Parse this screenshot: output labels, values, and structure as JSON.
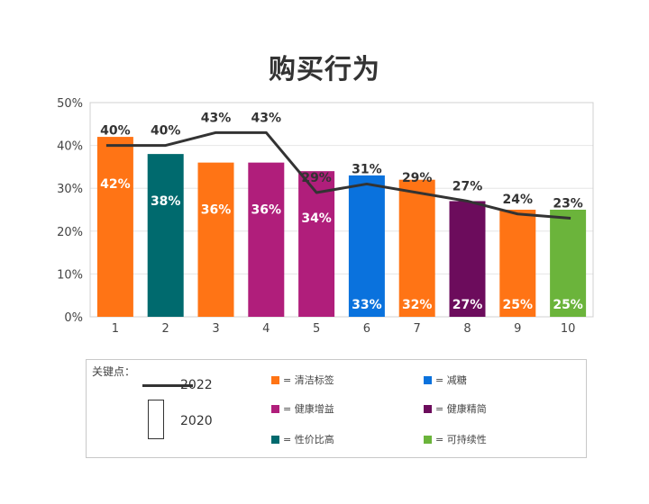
{
  "chart_data": {
    "type": "bar",
    "title": "购买行为",
    "categories": [
      "1",
      "2",
      "3",
      "4",
      "5",
      "6",
      "7",
      "8",
      "9",
      "10"
    ],
    "series": [
      {
        "name": "2020",
        "values": [
          42,
          38,
          36,
          36,
          34,
          33,
          32,
          27,
          25,
          25
        ],
        "labels": [
          "42%",
          "38%",
          "36%",
          "36%",
          "34%",
          "33%",
          "32%",
          "27%",
          "25%",
          "25%"
        ],
        "colors": [
          "#FF7415",
          "#006A6E",
          "#FF7415",
          "#B01E7B",
          "#B01E7B",
          "#0A72DD",
          "#FF7415",
          "#6C0C5C",
          "#FF7415",
          "#6BB43B"
        ]
      },
      {
        "name": "2022",
        "type": "line",
        "values": [
          40,
          40,
          43,
          43,
          29,
          31,
          29,
          27,
          24,
          23
        ],
        "labels": [
          "40%",
          "40%",
          "43%",
          "43%",
          "29%",
          "31%",
          "29%",
          "27%",
          "24%",
          "23%"
        ],
        "color": "#333333"
      }
    ],
    "ylim": [
      0,
      50
    ],
    "yticks": [
      "0%",
      "10%",
      "20%",
      "30%",
      "40%",
      "50%"
    ],
    "grid": true,
    "legend_placement": "bottom"
  },
  "legend": {
    "title": "关键点：",
    "line_label": "2022",
    "bar_label": "2020",
    "items": [
      {
        "label": "= 清洁标签",
        "color": "#FF7415"
      },
      {
        "label": "= 减糖",
        "color": "#0A72DD"
      },
      {
        "label": "= 健康增益",
        "color": "#B01E7B"
      },
      {
        "label": "= 健康精简",
        "color": "#6C0C5C"
      },
      {
        "label": "= 性价比高",
        "color": "#006A6E"
      },
      {
        "label": "= 可持续性",
        "color": "#6BB43B"
      }
    ]
  }
}
